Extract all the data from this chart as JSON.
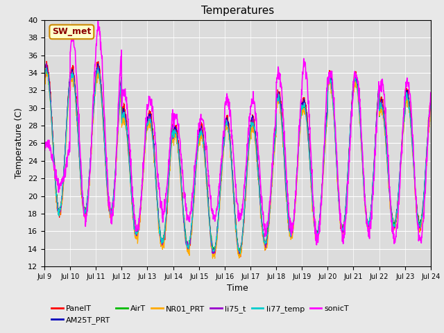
{
  "title": "Temperatures",
  "xlabel": "Time",
  "ylabel": "Temperature (C)",
  "ylim": [
    12,
    40
  ],
  "yticks": [
    12,
    14,
    16,
    18,
    20,
    22,
    24,
    26,
    28,
    30,
    32,
    34,
    36,
    38,
    40
  ],
  "n_days": 15,
  "xtick_labels": [
    "Jul 9",
    "Jul 10",
    "Jul 11",
    "Jul 12",
    "Jul 13",
    "Jul 14",
    "Jul 15",
    "Jul 16",
    "Jul 17",
    "Jul 18",
    "Jul 19",
    "Jul 20",
    "Jul 21",
    "Jul 22",
    "Jul 23",
    "Jul 24"
  ],
  "series": [
    {
      "name": "PanelT",
      "color": "#ff0000",
      "lw": 0.8
    },
    {
      "name": "AM25T_PRT",
      "color": "#0000bb",
      "lw": 0.8
    },
    {
      "name": "AirT",
      "color": "#00bb00",
      "lw": 0.8
    },
    {
      "name": "NR01_PRT",
      "color": "#ffaa00",
      "lw": 0.8
    },
    {
      "name": "li75_t",
      "color": "#9900cc",
      "lw": 0.8
    },
    {
      "name": "li77_temp",
      "color": "#00cccc",
      "lw": 0.8
    },
    {
      "name": "sonicT",
      "color": "#ff00ff",
      "lw": 1.2
    }
  ],
  "annotation_text": "SW_met",
  "fig_bg_color": "#e8e8e8",
  "plot_bg_color": "#dcdcdc",
  "grid_color": "#ffffff",
  "legend_fontsize": 8,
  "tick_fontsize": 8,
  "title_fontsize": 11,
  "peaks_base": [
    35.0,
    34.5,
    35.0,
    30.0,
    29.5,
    28.0,
    28.0,
    29.0,
    29.0,
    32.0,
    31.0,
    34.0,
    34.0,
    31.0,
    32.0
  ],
  "mins_base": [
    18.0,
    18.0,
    18.0,
    15.5,
    14.5,
    14.0,
    13.5,
    13.5,
    14.5,
    15.5,
    15.5,
    16.0,
    16.5,
    16.5,
    16.5
  ],
  "sonic_peaks": [
    26.0,
    38.0,
    39.0,
    32.0,
    31.0,
    29.0,
    29.0,
    31.0,
    31.0,
    34.0,
    35.0,
    34.0,
    34.0,
    33.0,
    33.0
  ],
  "sonic_mins": [
    21.0,
    17.5,
    17.5,
    16.0,
    18.0,
    17.5,
    17.5,
    17.5,
    16.0,
    16.0,
    15.0,
    15.5,
    16.0,
    15.0,
    15.0
  ]
}
